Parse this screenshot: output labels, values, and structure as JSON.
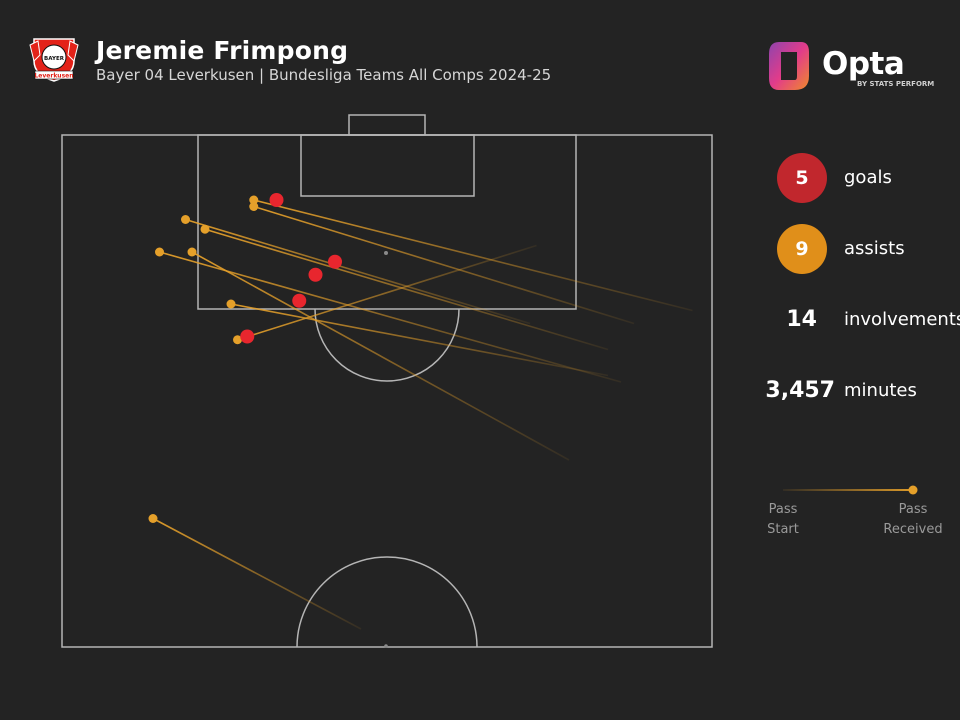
{
  "header": {
    "player_name": "Jeremie Frimpong",
    "subtitle": "Bayer 04 Leverkusen | Bundesliga Teams All Comps 2024-25"
  },
  "crest": {
    "icon": "bayer-leverkusen-crest-icon",
    "text_top": "BAYER",
    "text_bottom": "Leverkusen",
    "colors": {
      "red": "#e32219",
      "black": "#111111"
    }
  },
  "brand": {
    "icon": "opta-logo-icon",
    "name": "Opta",
    "sub": "BY STATS PERFORM",
    "colors": [
      "#e23c8a",
      "#f08a2b",
      "#8e44ad"
    ]
  },
  "stats": {
    "goals": {
      "value": "5",
      "label": "goals",
      "color": "#c1272d"
    },
    "assists": {
      "value": "9",
      "label": "assists",
      "color": "#e08f1a"
    },
    "involvements": {
      "value": "14",
      "label": "involvements"
    },
    "minutes": {
      "value": "3,457",
      "label": "minutes"
    }
  },
  "legend": {
    "start_line1": "Pass",
    "start_line2": "Start",
    "end_line1": "Pass",
    "end_line2": "Received"
  },
  "chart_data": {
    "type": "scatter",
    "pitch": "half-pitch-vertical",
    "colors": {
      "goal": "#e8262e",
      "assist": "#e5a02a",
      "lines": "#9a9a9a"
    },
    "goals": [
      {
        "x": 33,
        "y": 10
      },
      {
        "x": 42,
        "y": 19.5
      },
      {
        "x": 39,
        "y": 21.5
      },
      {
        "x": 36.5,
        "y": 25.5
      },
      {
        "x": 28.5,
        "y": 31
      }
    ],
    "assists": [
      {
        "from": [
          97,
          27
        ],
        "to": [
          29.5,
          10
        ]
      },
      {
        "from": [
          88,
          29
        ],
        "to": [
          29.5,
          11
        ]
      },
      {
        "from": [
          72,
          29
        ],
        "to": [
          19,
          13
        ]
      },
      {
        "from": [
          84,
          33
        ],
        "to": [
          22,
          14.5
        ]
      },
      {
        "from": [
          73,
          17
        ],
        "to": [
          27,
          31.5
        ]
      },
      {
        "from": [
          78,
          50
        ],
        "to": [
          20,
          18
        ]
      },
      {
        "from": [
          86,
          38
        ],
        "to": [
          15,
          18
        ]
      },
      {
        "from": [
          84,
          37
        ],
        "to": [
          26,
          26
        ]
      },
      {
        "from": [
          46,
          76
        ],
        "to": [
          14,
          59
        ]
      }
    ]
  }
}
